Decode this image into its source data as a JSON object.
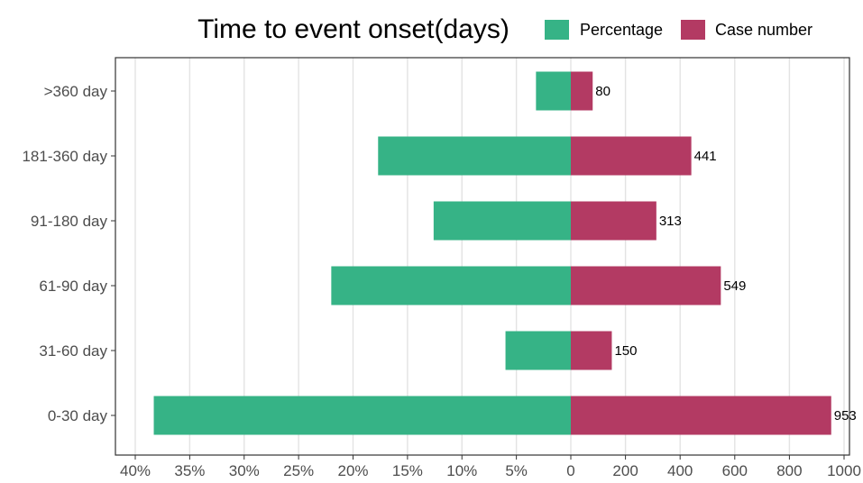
{
  "chart_data": {
    "type": "bar",
    "orientation": "horizontal",
    "title": "Time to event onset(days)",
    "categories": [
      "0-30 day",
      "31-60 day",
      "61-90 day",
      "91-180 day",
      "181-360 day",
      ">360 day"
    ],
    "series": [
      {
        "name": "Percentage",
        "unit": "%",
        "values": [
          38.3,
          6.0,
          22.0,
          12.6,
          17.7,
          3.2
        ],
        "color": "#36b386"
      },
      {
        "name": "Case number",
        "values": [
          953,
          150,
          549,
          313,
          441,
          80
        ],
        "color": "#b33a63"
      }
    ],
    "x_left_ticks": [
      "40%",
      "35%",
      "30%",
      "25%",
      "20%",
      "15%",
      "10%",
      "5%",
      "0"
    ],
    "x_right_ticks": [
      "200",
      "400",
      "600",
      "800",
      "1000"
    ],
    "x_left_range": [
      40,
      0
    ],
    "x_right_range": [
      0,
      1000
    ],
    "grid": true,
    "legend_position": "top-right"
  }
}
